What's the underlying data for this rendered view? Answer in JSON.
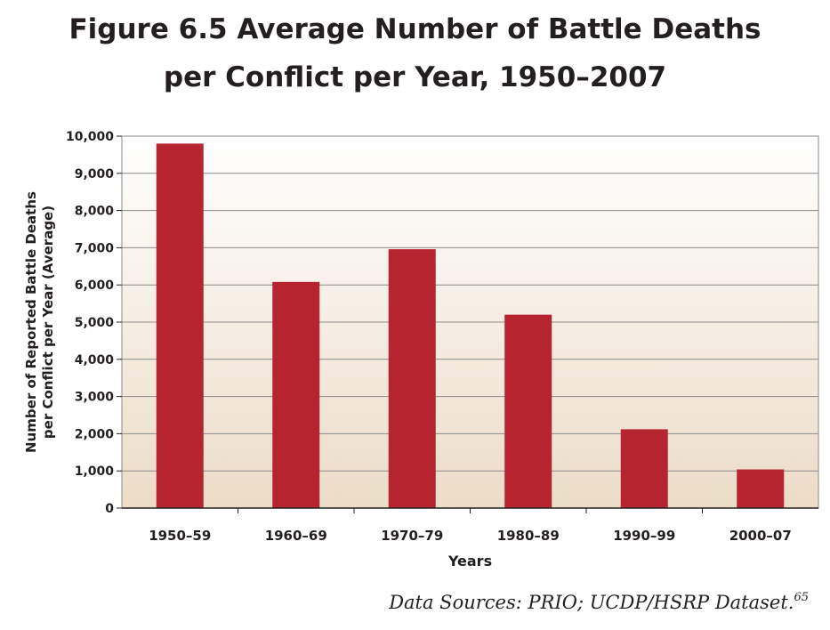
{
  "chart_data": {
    "type": "bar",
    "title": [
      "Figure 6.5 Average Number of Battle Deaths",
      "per Conflict per Year, 1950–2007"
    ],
    "xlabel": "Years",
    "ylabel": [
      "Number of Reported Battle Deaths",
      "per Conflict per Year (Average)"
    ],
    "categories": [
      "1950–59",
      "1960–69",
      "1970–79",
      "1980–89",
      "1990–99",
      "2000–07"
    ],
    "values": [
      9800,
      6080,
      6960,
      5200,
      2120,
      1040
    ],
    "ylim": [
      0,
      10000
    ],
    "yticks": [
      0,
      1000,
      2000,
      3000,
      4000,
      5000,
      6000,
      7000,
      8000,
      9000,
      10000
    ],
    "ytick_labels": [
      "0",
      "1,000",
      "2,000",
      "3,000",
      "4,000",
      "5,000",
      "6,000",
      "7,000",
      "8,000",
      "9,000",
      "10,000"
    ],
    "grid": true,
    "colors": {
      "bar": "#b62430",
      "gradient_top": "#ffffff",
      "gradient_bottom": "#ecdcc7",
      "grid": "#8a8a8a"
    }
  },
  "source": {
    "text": "Data Sources: PRIO; UCDP/HSRP Dataset.",
    "footnote": "65"
  }
}
